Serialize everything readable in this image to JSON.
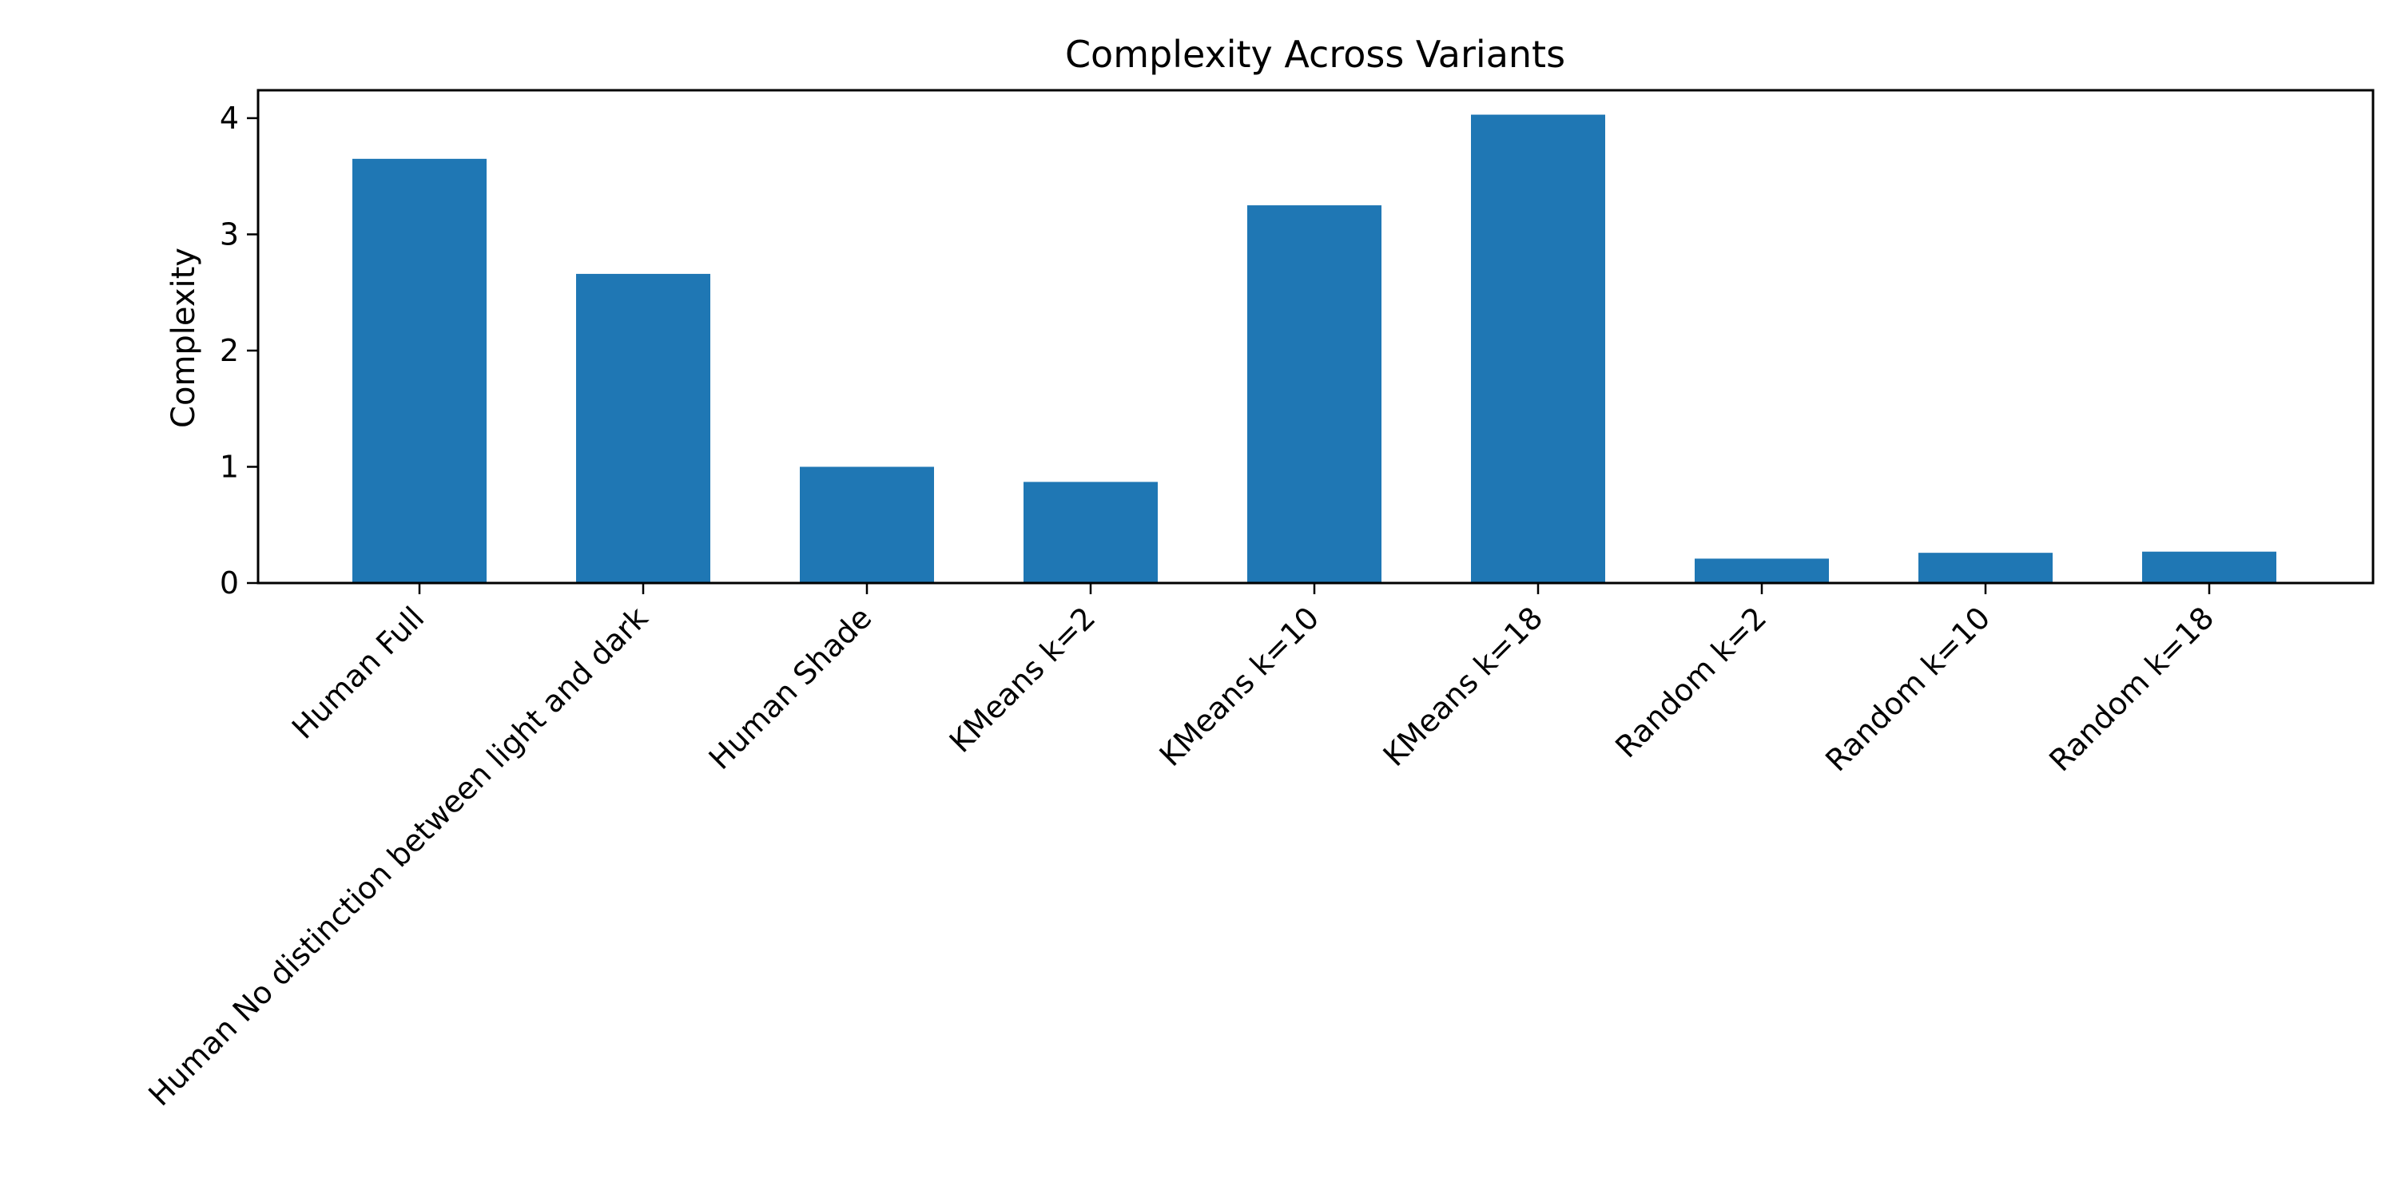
{
  "chart_data": {
    "type": "bar",
    "title": "Complexity Across Variants",
    "xlabel": "",
    "ylabel": "Complexity",
    "categories": [
      "Human Full",
      "Human No distinction between light and dark",
      "Human Shade",
      "KMeans k=2",
      "KMeans k=10",
      "KMeans k=18",
      "Random k=2",
      "Random k=10",
      "Random k=18"
    ],
    "values": [
      3.65,
      2.66,
      1.0,
      0.87,
      3.25,
      4.03,
      0.21,
      0.26,
      0.27
    ],
    "ylim": [
      0,
      4.24
    ],
    "yticks": [
      0,
      1,
      2,
      3,
      4
    ],
    "grid": false,
    "legend": "none",
    "bar_color": "#1f77b4"
  }
}
